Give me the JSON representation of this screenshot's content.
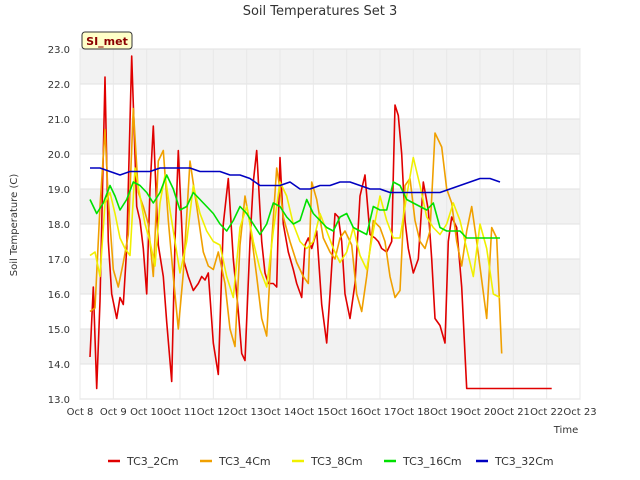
{
  "chart_data": {
    "type": "line",
    "title": "Soil Temperatures Set 3",
    "xlabel": "Time",
    "ylabel": "Soil Temperature (C)",
    "site_label": "SI_met",
    "ylim": [
      13.0,
      23.0
    ],
    "xlim": [
      8,
      23
    ],
    "yticks": [
      "13.0",
      "14.0",
      "15.0",
      "16.0",
      "17.0",
      "18.0",
      "19.0",
      "20.0",
      "21.0",
      "22.0",
      "23.0"
    ],
    "xticks": [
      "Oct 8",
      "Oct 9",
      "Oct 10",
      "Oct 11",
      "Oct 12",
      "Oct 13",
      "Oct 14",
      "Oct 15",
      "Oct 16",
      "Oct 17",
      "Oct 18",
      "Oct 19",
      "Oct 20",
      "Oct 21",
      "Oct 22",
      "Oct 23"
    ],
    "grid": true,
    "legend_position": "bottom",
    "series": [
      {
        "name": "TC3_2Cm",
        "color": "#e00000",
        "x": [
          8.3,
          8.4,
          8.5,
          8.6,
          8.75,
          8.85,
          8.95,
          9.1,
          9.2,
          9.3,
          9.4,
          9.55,
          9.7,
          9.8,
          9.9,
          10.0,
          10.1,
          10.2,
          10.35,
          10.5,
          10.6,
          10.75,
          10.85,
          10.95,
          11.1,
          11.25,
          11.4,
          11.55,
          11.65,
          11.75,
          11.85,
          12.0,
          12.15,
          12.3,
          12.45,
          12.6,
          12.75,
          12.85,
          12.95,
          13.1,
          13.2,
          13.3,
          13.45,
          13.55,
          13.65,
          13.8,
          13.9,
          14.0,
          14.1,
          14.25,
          14.4,
          14.5,
          14.65,
          14.75,
          14.85,
          14.95,
          15.1,
          15.25,
          15.4,
          15.5,
          15.65,
          15.75,
          15.85,
          15.95,
          16.1,
          16.25,
          16.4,
          16.55,
          16.7,
          16.85,
          16.95,
          17.05,
          17.2,
          17.35,
          17.45,
          17.55,
          17.65,
          17.75,
          17.85,
          18.0,
          18.15,
          18.3,
          18.45,
          18.55,
          18.65,
          18.8,
          18.95,
          19.05,
          19.15,
          19.3,
          19.45,
          19.6,
          19.7,
          19.8,
          19.85,
          19.95,
          20.05,
          20.15,
          20.3,
          20.45,
          20.55,
          20.65,
          20.8,
          20.95,
          21.05,
          21.2,
          21.35,
          21.45,
          21.55,
          21.65,
          21.75,
          21.85,
          21.95,
          22.05,
          22.15
        ],
        "values": [
          14.2,
          16.2,
          13.3,
          15.8,
          22.2,
          17.5,
          16.0,
          15.3,
          15.9,
          15.7,
          17.3,
          22.8,
          18.5,
          18.1,
          17.3,
          16.0,
          19.0,
          20.8,
          17.4,
          16.5,
          15.2,
          13.5,
          17.5,
          20.1,
          17.0,
          16.5,
          16.1,
          16.3,
          16.5,
          16.4,
          16.6,
          14.6,
          13.7,
          18.0,
          19.3,
          17.0,
          15.5,
          14.3,
          14.1,
          17.5,
          19.2,
          20.1,
          17.5,
          16.6,
          16.3,
          16.3,
          16.2,
          19.9,
          18.0,
          17.2,
          16.7,
          16.3,
          15.9,
          17.4,
          17.6,
          17.3,
          17.8,
          15.7,
          14.6,
          16.0,
          18.3,
          18.2,
          17.5,
          16.0,
          15.3,
          16.3,
          18.8,
          19.4,
          17.7,
          17.6,
          17.5,
          17.3,
          17.2,
          17.5,
          21.4,
          21.1,
          20.0,
          18.1,
          17.3,
          16.6,
          17.0,
          19.2,
          18.4,
          17.0,
          15.3,
          15.1,
          14.6,
          17.5,
          18.2,
          17.9,
          16.2,
          13.3,
          13.3,
          13.3,
          13.3,
          13.3,
          13.3,
          13.3,
          13.3,
          13.3,
          13.3,
          13.3,
          13.3,
          13.3,
          13.3,
          13.3,
          13.3,
          13.3,
          13.3,
          13.3,
          13.3,
          13.3,
          13.3,
          13.3,
          13.3
        ]
      },
      {
        "name": "TC3_4Cm",
        "color": "#f0a000",
        "x": [
          8.3,
          8.45,
          8.6,
          8.75,
          8.85,
          9.0,
          9.15,
          9.3,
          9.45,
          9.6,
          9.75,
          9.9,
          10.05,
          10.2,
          10.35,
          10.5,
          10.65,
          10.8,
          10.95,
          11.1,
          11.3,
          11.5,
          11.7,
          11.85,
          12.0,
          12.15,
          12.35,
          12.5,
          12.65,
          12.8,
          12.95,
          13.1,
          13.3,
          13.45,
          13.6,
          13.75,
          13.9,
          14.0,
          14.1,
          14.3,
          14.5,
          14.7,
          14.85,
          14.95,
          15.1,
          15.3,
          15.5,
          15.65,
          15.8,
          15.95,
          16.15,
          16.3,
          16.45,
          16.6,
          16.8,
          17.0,
          17.15,
          17.3,
          17.45,
          17.6,
          17.75,
          17.9,
          18.05,
          18.2,
          18.35,
          18.5,
          18.65,
          18.85,
          19.0,
          19.15,
          19.3,
          19.45,
          19.6,
          19.75,
          19.9,
          20.05,
          20.2,
          20.35,
          20.5,
          20.65
        ],
        "values": [
          15.5,
          15.6,
          18.5,
          20.7,
          18.7,
          16.7,
          16.2,
          16.9,
          17.7,
          21.3,
          18.9,
          18.5,
          18.0,
          16.5,
          19.8,
          20.1,
          18.1,
          16.5,
          15.0,
          16.6,
          19.8,
          18.5,
          17.2,
          16.8,
          16.7,
          17.2,
          16.3,
          15.0,
          14.5,
          17.4,
          18.8,
          18.0,
          16.5,
          15.3,
          14.8,
          17.5,
          19.6,
          19.0,
          18.2,
          17.5,
          16.9,
          16.5,
          16.3,
          19.2,
          18.7,
          17.6,
          17.2,
          17.0,
          17.6,
          17.8,
          17.4,
          16.0,
          15.5,
          16.5,
          18.1,
          17.9,
          17.5,
          16.5,
          15.9,
          16.1,
          19.1,
          19.3,
          18.1,
          17.5,
          17.3,
          17.8,
          20.6,
          20.2,
          19.0,
          18.6,
          17.5,
          16.8,
          17.8,
          18.5,
          17.5,
          16.4,
          15.3,
          17.9,
          17.6,
          14.3
        ]
      },
      {
        "name": "TC3_8Cm",
        "color": "#f0f000",
        "x": [
          8.3,
          8.45,
          8.6,
          8.75,
          8.9,
          9.05,
          9.2,
          9.35,
          9.5,
          9.65,
          9.8,
          9.95,
          10.1,
          10.25,
          10.4,
          10.55,
          10.7,
          10.85,
          11.0,
          11.2,
          11.4,
          11.6,
          11.8,
          12.0,
          12.2,
          12.4,
          12.6,
          12.8,
          13.0,
          13.2,
          13.4,
          13.6,
          13.8,
          14.0,
          14.2,
          14.4,
          14.6,
          14.8,
          15.0,
          15.2,
          15.4,
          15.6,
          15.8,
          16.0,
          16.2,
          16.4,
          16.6,
          16.8,
          17.0,
          17.2,
          17.4,
          17.6,
          17.8,
          18.0,
          18.2,
          18.4,
          18.6,
          18.8,
          19.0,
          19.2,
          19.4,
          19.6,
          19.8,
          20.0,
          20.2,
          20.4,
          20.6
        ],
        "values": [
          17.1,
          17.2,
          16.5,
          18.6,
          18.9,
          18.3,
          17.6,
          17.3,
          17.1,
          19.6,
          18.8,
          18.0,
          17.5,
          16.8,
          18.6,
          19.4,
          18.4,
          17.5,
          16.6,
          17.5,
          19.1,
          18.3,
          17.8,
          17.5,
          17.4,
          16.5,
          15.9,
          17.9,
          18.5,
          17.5,
          16.7,
          16.2,
          17.8,
          19.2,
          18.8,
          18.0,
          17.5,
          17.3,
          17.5,
          18.3,
          17.8,
          17.3,
          16.9,
          17.2,
          17.9,
          17.1,
          16.7,
          17.8,
          18.8,
          18.1,
          17.6,
          17.6,
          18.8,
          19.9,
          19.1,
          18.2,
          17.9,
          17.7,
          18.0,
          18.6,
          18.1,
          17.3,
          16.5,
          18.0,
          17.3,
          16.0,
          15.9
        ]
      },
      {
        "name": "TC3_16Cm",
        "color": "#00e000",
        "x": [
          8.3,
          8.5,
          8.7,
          8.9,
          9.05,
          9.2,
          9.4,
          9.6,
          9.8,
          10.0,
          10.2,
          10.4,
          10.6,
          10.8,
          11.0,
          11.2,
          11.4,
          11.6,
          11.8,
          12.0,
          12.2,
          12.4,
          12.6,
          12.8,
          13.0,
          13.2,
          13.4,
          13.6,
          13.8,
          14.0,
          14.2,
          14.4,
          14.6,
          14.8,
          15.0,
          15.2,
          15.4,
          15.6,
          15.8,
          16.0,
          16.2,
          16.4,
          16.6,
          16.8,
          17.0,
          17.2,
          17.4,
          17.6,
          17.8,
          18.0,
          18.2,
          18.4,
          18.6,
          18.8,
          19.0,
          19.2,
          19.4,
          19.6,
          19.8,
          20.0,
          20.2,
          20.4,
          20.6
        ],
        "values": [
          18.7,
          18.3,
          18.6,
          19.1,
          18.8,
          18.4,
          18.7,
          19.2,
          19.1,
          18.9,
          18.6,
          18.9,
          19.4,
          19.0,
          18.4,
          18.5,
          18.9,
          18.7,
          18.5,
          18.3,
          18.0,
          17.8,
          18.1,
          18.5,
          18.3,
          18.0,
          17.7,
          18.0,
          18.6,
          18.5,
          18.2,
          18.0,
          18.1,
          18.7,
          18.3,
          18.1,
          17.9,
          17.8,
          18.2,
          18.3,
          17.9,
          17.8,
          17.7,
          18.5,
          18.4,
          18.4,
          19.2,
          19.1,
          18.7,
          18.6,
          18.5,
          18.4,
          18.6,
          17.9,
          17.8,
          17.8,
          17.8,
          17.6,
          17.6,
          17.6,
          17.6,
          17.6,
          17.6
        ]
      },
      {
        "name": "TC3_32Cm",
        "color": "#0000c0",
        "x": [
          8.3,
          8.6,
          8.9,
          9.2,
          9.5,
          9.8,
          10.1,
          10.4,
          10.7,
          11.0,
          11.3,
          11.6,
          11.9,
          12.2,
          12.5,
          12.8,
          13.1,
          13.4,
          13.7,
          14.0,
          14.3,
          14.6,
          14.9,
          15.2,
          15.5,
          15.8,
          16.1,
          16.4,
          16.7,
          17.0,
          17.3,
          17.6,
          17.9,
          18.2,
          18.5,
          18.8,
          19.1,
          19.4,
          19.7,
          20.0,
          20.3,
          20.6
        ],
        "values": [
          19.6,
          19.6,
          19.5,
          19.4,
          19.5,
          19.5,
          19.5,
          19.6,
          19.6,
          19.6,
          19.6,
          19.5,
          19.5,
          19.5,
          19.4,
          19.4,
          19.3,
          19.1,
          19.1,
          19.1,
          19.2,
          19.0,
          19.0,
          19.1,
          19.1,
          19.2,
          19.2,
          19.1,
          19.0,
          19.0,
          18.9,
          18.9,
          18.9,
          18.9,
          18.9,
          18.9,
          19.0,
          19.1,
          19.2,
          19.3,
          19.3,
          19.2
        ]
      }
    ]
  }
}
